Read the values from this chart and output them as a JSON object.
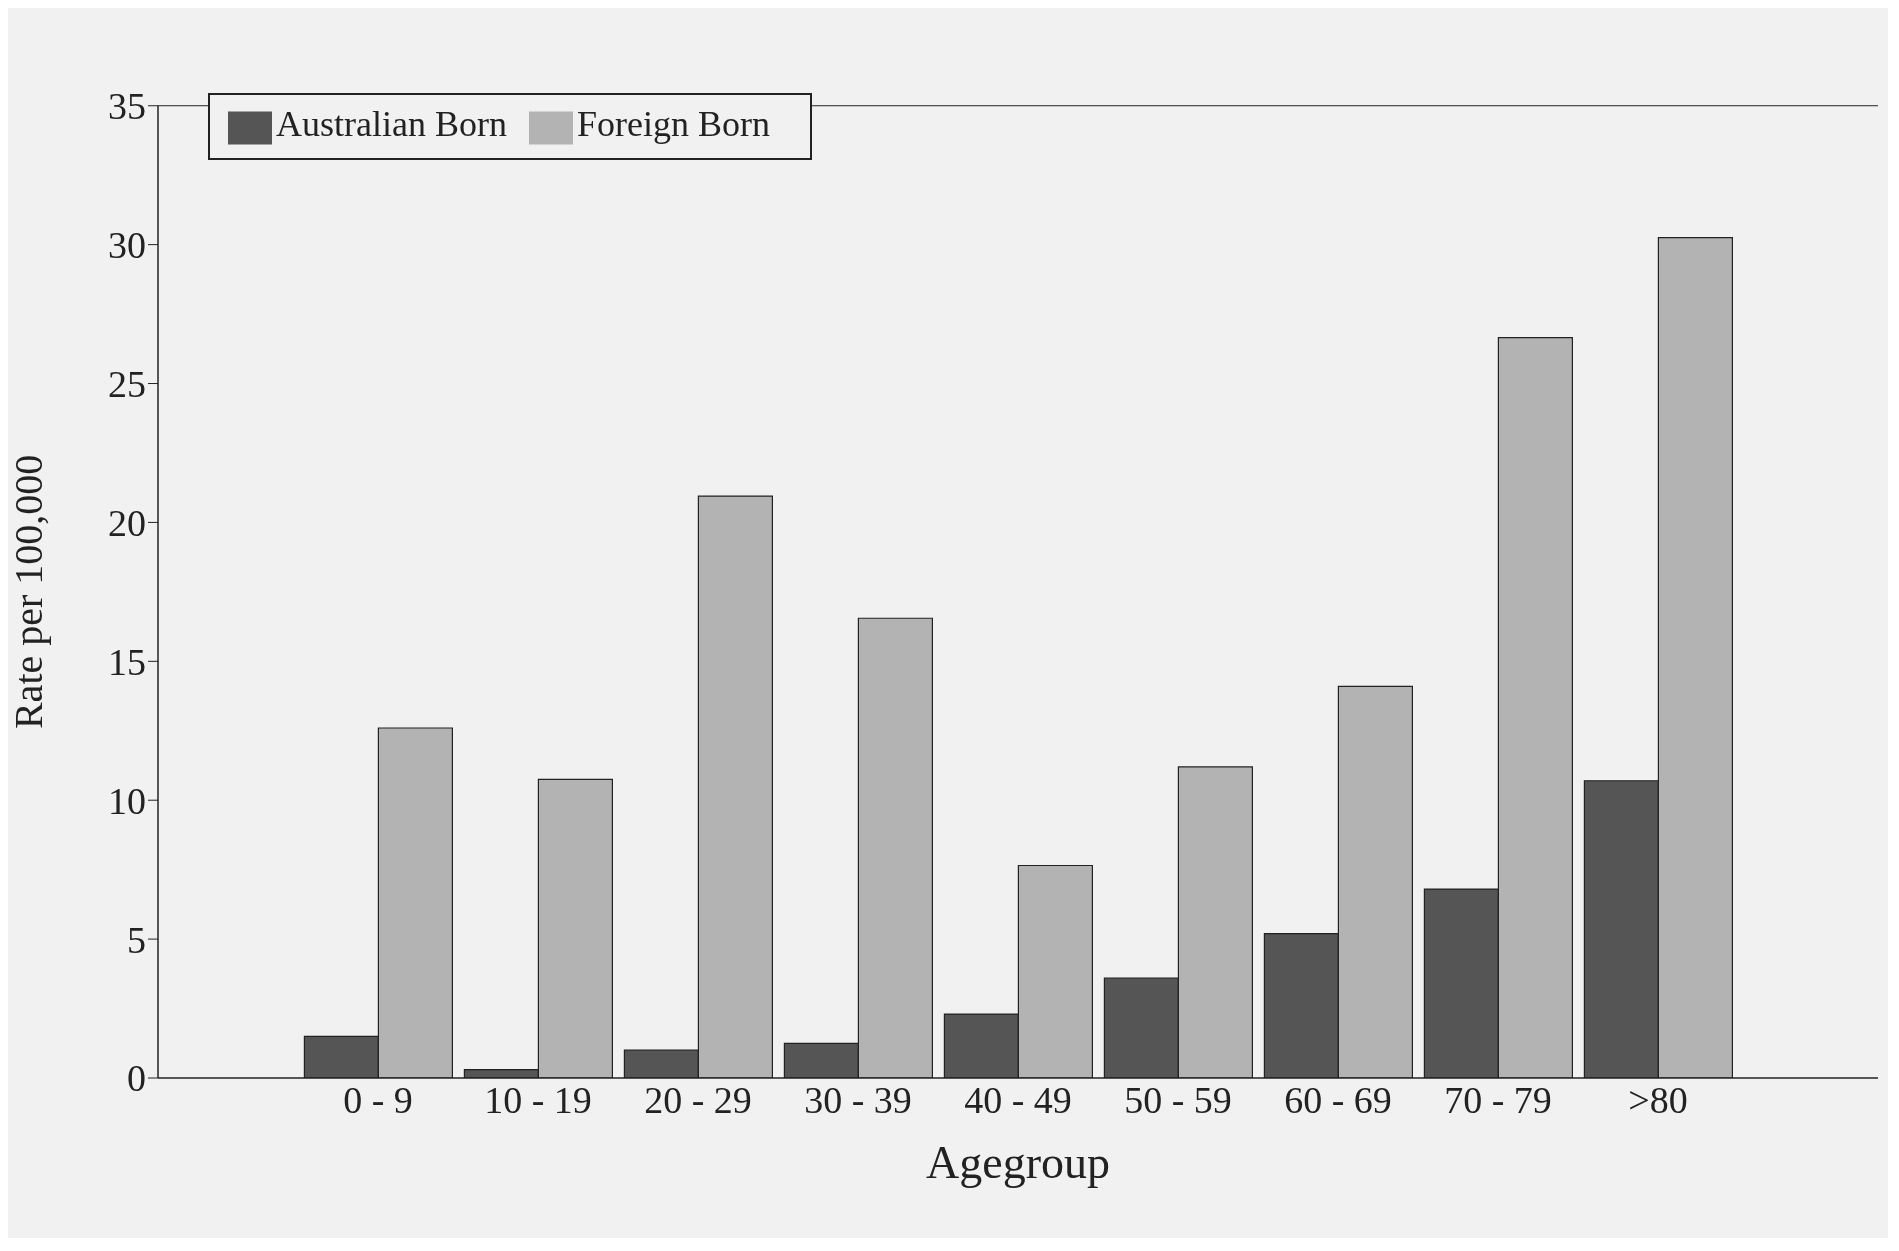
{
  "chart_data": {
    "type": "bar",
    "xlabel": "Agegroup",
    "ylabel": "Rate per 100,000",
    "categories": [
      "0 - 9",
      "10 - 19",
      "20 - 29",
      "30 - 39",
      "40 - 49",
      "50 - 59",
      "60 - 69",
      "70 - 79",
      ">80"
    ],
    "series": [
      {
        "name": "Australian Born",
        "color": "#555555",
        "values": [
          1.5,
          0.3,
          1.0,
          1.25,
          2.3,
          3.6,
          5.2,
          6.8,
          10.7
        ]
      },
      {
        "name": "Foreign Born",
        "color": "#b3b3b3",
        "values": [
          12.6,
          10.75,
          20.95,
          16.55,
          7.65,
          11.2,
          14.1,
          26.65,
          30.25
        ]
      }
    ],
    "ylim": [
      0,
      35
    ],
    "yticks": [
      0,
      5,
      10,
      15,
      20,
      25,
      30,
      35
    ],
    "grid": false,
    "legend": "top left"
  }
}
